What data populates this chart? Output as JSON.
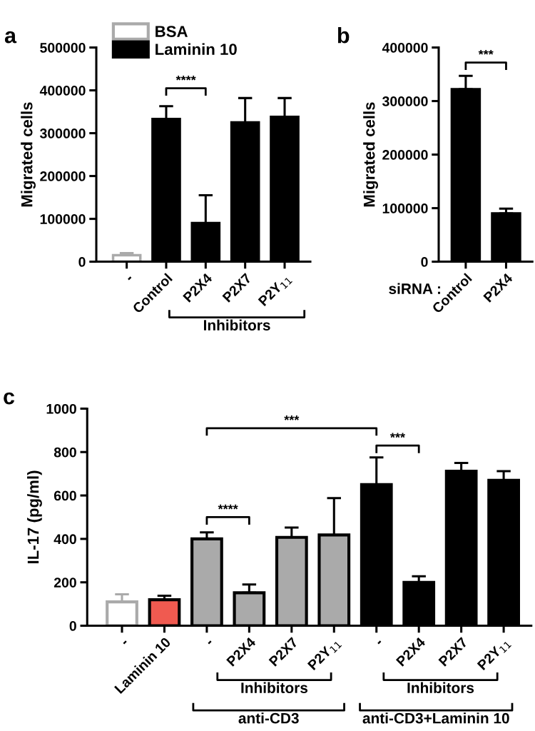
{
  "chart_data": [
    {
      "type": "bar",
      "title": "a",
      "ylabel": "Migrated cells",
      "categories": [
        "-",
        "Control",
        "P2X4",
        "P2X7",
        "P2Y$_{11}$"
      ],
      "series": [
        {
          "name": "BSA",
          "color": "#ffffff",
          "values": [
            15000,
            null,
            null,
            null,
            null
          ],
          "errors": [
            5000,
            null,
            null,
            null,
            null
          ]
        },
        {
          "name": "Laminin 10",
          "color": "#000000",
          "values": [
            null,
            333000,
            90000,
            325000,
            338000
          ],
          "errors": [
            null,
            30000,
            65000,
            57000,
            44000
          ]
        }
      ],
      "ylim": [
        0,
        500000
      ],
      "yticks": [
        0,
        100000,
        200000,
        300000,
        400000,
        500000
      ],
      "legend": "top left",
      "grid": false,
      "annotations": [
        "****",
        "Inhibitors"
      ]
    },
    {
      "type": "bar",
      "title": "b",
      "ylabel": "Migrated cells",
      "categories": [
        "Control",
        "P2X4"
      ],
      "color": "#000000",
      "values": [
        322000,
        90000
      ],
      "errors": [
        25000,
        9000
      ],
      "ylim": [
        0,
        400000
      ],
      "yticks": [
        0,
        100000,
        200000,
        300000,
        400000
      ],
      "grid": false,
      "annotations": [
        "***",
        "siRNA :"
      ]
    },
    {
      "type": "bar",
      "title": "c",
      "ylabel": "IL-17 (pg/ml)",
      "categories": [
        "-",
        "Laminin 10",
        "-",
        "P2X4",
        "P2X7",
        "P2Y$_{11}$",
        "-",
        "P2X4",
        "P2X7",
        "P2Y$_{11}$"
      ],
      "values": [
        110,
        120,
        400,
        152,
        407,
        418,
        650,
        200,
        712,
        670
      ],
      "errors": [
        35,
        18,
        30,
        38,
        45,
        170,
        125,
        28,
        38,
        42
      ],
      "colors": [
        "#ffffff",
        "#f05a50",
        "#aaaaaa",
        "#aaaaaa",
        "#aaaaaa",
        "#aaaaaa",
        "#000000",
        "#000000",
        "#000000",
        "#000000"
      ],
      "ylim": [
        0,
        1000
      ],
      "yticks": [
        0,
        200,
        400,
        600,
        800,
        1000
      ],
      "grid": false,
      "annotations": [
        "***",
        "***",
        "****",
        "Inhibitors",
        "Inhibitors",
        "anti-CD3",
        "anti-CD3+Laminin 10"
      ]
    }
  ]
}
